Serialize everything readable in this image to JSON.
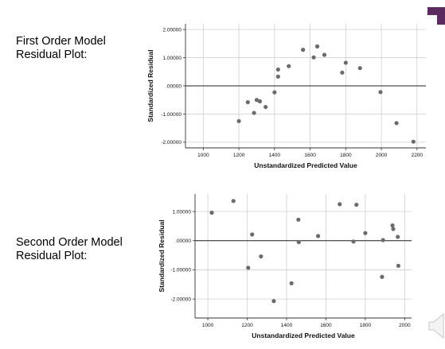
{
  "labels": {
    "first": [
      "First Order Model",
      "Residual Plot:"
    ],
    "second": [
      "Second Order Model",
      "Residual Plot:"
    ]
  },
  "colors": {
    "accent": "#5b2a5e",
    "point": "#6b6b6b",
    "grid": "#d0d0d0",
    "axis": "#333333"
  },
  "chart_data": [
    {
      "type": "scatter",
      "title": "",
      "xlabel": "Unstandardized Predicted Value",
      "ylabel": "Standardized Residual",
      "xlim": [
        900,
        2250
      ],
      "ylim": [
        -2.2,
        2.2
      ],
      "xticks": [
        1000,
        1200,
        1400,
        1600,
        1800,
        2000,
        2200
      ],
      "xtick_labels": [
        "1000",
        "1200",
        "1400",
        "1600",
        "1800",
        "2000",
        "2200"
      ],
      "yticks": [
        -2,
        -1,
        0,
        1,
        2
      ],
      "ytick_labels": [
        "-2.00000",
        "-1.00000",
        ".00000",
        "1.00000",
        "2.00000"
      ],
      "grid": true,
      "reference_line_y": 0,
      "points": [
        {
          "x": 1200,
          "y": -1.25
        },
        {
          "x": 1250,
          "y": -0.58
        },
        {
          "x": 1285,
          "y": -0.96
        },
        {
          "x": 1300,
          "y": -0.5
        },
        {
          "x": 1318,
          "y": -0.55
        },
        {
          "x": 1350,
          "y": -0.75
        },
        {
          "x": 1400,
          "y": -0.23
        },
        {
          "x": 1420,
          "y": 0.33
        },
        {
          "x": 1420,
          "y": 0.58
        },
        {
          "x": 1480,
          "y": 0.7
        },
        {
          "x": 1560,
          "y": 1.28
        },
        {
          "x": 1620,
          "y": 1.01
        },
        {
          "x": 1640,
          "y": 1.4
        },
        {
          "x": 1680,
          "y": 1.1
        },
        {
          "x": 1780,
          "y": 0.47
        },
        {
          "x": 1800,
          "y": 0.82
        },
        {
          "x": 1880,
          "y": 0.63
        },
        {
          "x": 1995,
          "y": -0.22
        },
        {
          "x": 2085,
          "y": -1.32
        },
        {
          "x": 2180,
          "y": -1.98
        }
      ]
    },
    {
      "type": "scatter",
      "title": "",
      "xlabel": "Unstandardized Predicted Value",
      "ylabel": "Standardized Residual",
      "xlim": [
        935,
        2035
      ],
      "ylim": [
        -2.65,
        1.6
      ],
      "xticks": [
        1000,
        1200,
        1400,
        1600,
        1800,
        2000
      ],
      "xtick_labels": [
        "1000",
        "1200",
        "1400",
        "1600",
        "1800",
        "2000"
      ],
      "yticks": [
        -2,
        -1,
        0,
        1
      ],
      "ytick_labels": [
        "-2.00000",
        "-1.00000",
        ".00000",
        "1.00000"
      ],
      "grid": true,
      "reference_line_y": 0,
      "points": [
        {
          "x": 1020,
          "y": 0.96
        },
        {
          "x": 1130,
          "y": 1.36
        },
        {
          "x": 1205,
          "y": -0.93
        },
        {
          "x": 1225,
          "y": 0.21
        },
        {
          "x": 1270,
          "y": -0.54
        },
        {
          "x": 1335,
          "y": -2.07
        },
        {
          "x": 1425,
          "y": -1.46
        },
        {
          "x": 1460,
          "y": 0.72
        },
        {
          "x": 1462,
          "y": -0.05
        },
        {
          "x": 1560,
          "y": 0.16
        },
        {
          "x": 1670,
          "y": 1.25
        },
        {
          "x": 1740,
          "y": -0.03
        },
        {
          "x": 1755,
          "y": 1.23
        },
        {
          "x": 1800,
          "y": 0.26
        },
        {
          "x": 1885,
          "y": -1.24
        },
        {
          "x": 1890,
          "y": 0.02
        },
        {
          "x": 1938,
          "y": 0.52
        },
        {
          "x": 1942,
          "y": 0.4
        },
        {
          "x": 1965,
          "y": 0.13
        },
        {
          "x": 1968,
          "y": -0.86
        }
      ]
    }
  ]
}
